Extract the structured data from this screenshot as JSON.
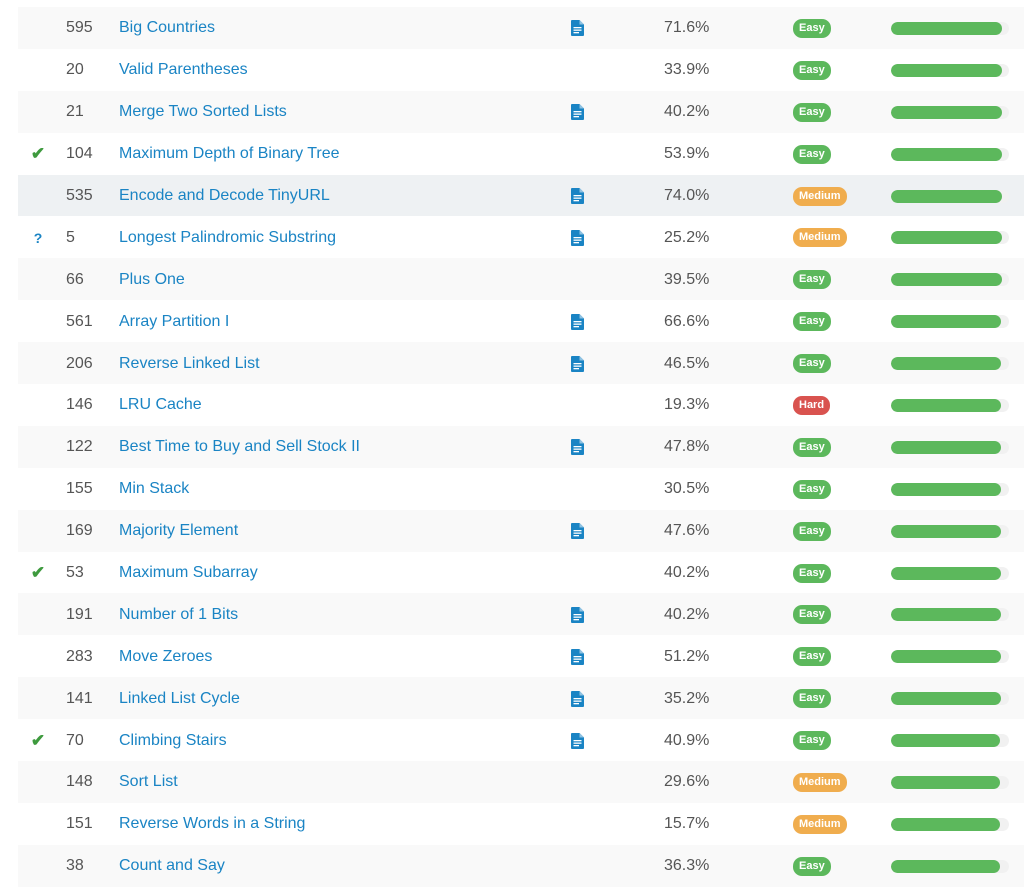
{
  "colors": {
    "link": "#1a84c4",
    "easy": "#5cb85c",
    "medium": "#f0ad4e",
    "hard": "#d9534f",
    "frequency_bar": "#5cb85c"
  },
  "problems": [
    {
      "status": "",
      "id": "595",
      "title": "Big Countries",
      "solution": true,
      "acceptance": "71.6%",
      "difficulty": "Easy",
      "frequency": 0.94
    },
    {
      "status": "",
      "id": "20",
      "title": "Valid Parentheses",
      "solution": false,
      "acceptance": "33.9%",
      "difficulty": "Easy",
      "frequency": 0.94
    },
    {
      "status": "",
      "id": "21",
      "title": "Merge Two Sorted Lists",
      "solution": true,
      "acceptance": "40.2%",
      "difficulty": "Easy",
      "frequency": 0.94
    },
    {
      "status": "✔",
      "id": "104",
      "title": "Maximum Depth of Binary Tree",
      "solution": false,
      "acceptance": "53.9%",
      "difficulty": "Easy",
      "frequency": 0.94
    },
    {
      "status": "",
      "id": "535",
      "title": "Encode and Decode TinyURL",
      "solution": true,
      "acceptance": "74.0%",
      "difficulty": "Medium",
      "frequency": 0.94
    },
    {
      "status": "?",
      "id": "5",
      "title": "Longest Palindromic Substring",
      "solution": true,
      "acceptance": "25.2%",
      "difficulty": "Medium",
      "frequency": 0.94
    },
    {
      "status": "",
      "id": "66",
      "title": "Plus One",
      "solution": false,
      "acceptance": "39.5%",
      "difficulty": "Easy",
      "frequency": 0.94
    },
    {
      "status": "",
      "id": "561",
      "title": "Array Partition I",
      "solution": true,
      "acceptance": "66.6%",
      "difficulty": "Easy",
      "frequency": 0.93
    },
    {
      "status": "",
      "id": "206",
      "title": "Reverse Linked List",
      "solution": true,
      "acceptance": "46.5%",
      "difficulty": "Easy",
      "frequency": 0.93
    },
    {
      "status": "",
      "id": "146",
      "title": "LRU Cache",
      "solution": false,
      "acceptance": "19.3%",
      "difficulty": "Hard",
      "frequency": 0.93
    },
    {
      "status": "",
      "id": "122",
      "title": "Best Time to Buy and Sell Stock II",
      "solution": true,
      "acceptance": "47.8%",
      "difficulty": "Easy",
      "frequency": 0.93
    },
    {
      "status": "",
      "id": "155",
      "title": "Min Stack",
      "solution": false,
      "acceptance": "30.5%",
      "difficulty": "Easy",
      "frequency": 0.93
    },
    {
      "status": "",
      "id": "169",
      "title": "Majority Element",
      "solution": true,
      "acceptance": "47.6%",
      "difficulty": "Easy",
      "frequency": 0.93
    },
    {
      "status": "✔",
      "id": "53",
      "title": "Maximum Subarray",
      "solution": false,
      "acceptance": "40.2%",
      "difficulty": "Easy",
      "frequency": 0.93
    },
    {
      "status": "",
      "id": "191",
      "title": "Number of 1 Bits",
      "solution": true,
      "acceptance": "40.2%",
      "difficulty": "Easy",
      "frequency": 0.93
    },
    {
      "status": "",
      "id": "283",
      "title": "Move Zeroes",
      "solution": true,
      "acceptance": "51.2%",
      "difficulty": "Easy",
      "frequency": 0.93
    },
    {
      "status": "",
      "id": "141",
      "title": "Linked List Cycle",
      "solution": true,
      "acceptance": "35.2%",
      "difficulty": "Easy",
      "frequency": 0.93
    },
    {
      "status": "✔",
      "id": "70",
      "title": "Climbing Stairs",
      "solution": true,
      "acceptance": "40.9%",
      "difficulty": "Easy",
      "frequency": 0.92
    },
    {
      "status": "",
      "id": "148",
      "title": "Sort List",
      "solution": false,
      "acceptance": "29.6%",
      "difficulty": "Medium",
      "frequency": 0.92
    },
    {
      "status": "",
      "id": "151",
      "title": "Reverse Words in a String",
      "solution": false,
      "acceptance": "15.7%",
      "difficulty": "Medium",
      "frequency": 0.92
    },
    {
      "status": "",
      "id": "38",
      "title": "Count and Say",
      "solution": false,
      "acceptance": "36.3%",
      "difficulty": "Easy",
      "frequency": 0.92
    }
  ],
  "icons": {
    "solved": "check-icon",
    "attempted": "question-icon",
    "solution": "document-icon"
  }
}
